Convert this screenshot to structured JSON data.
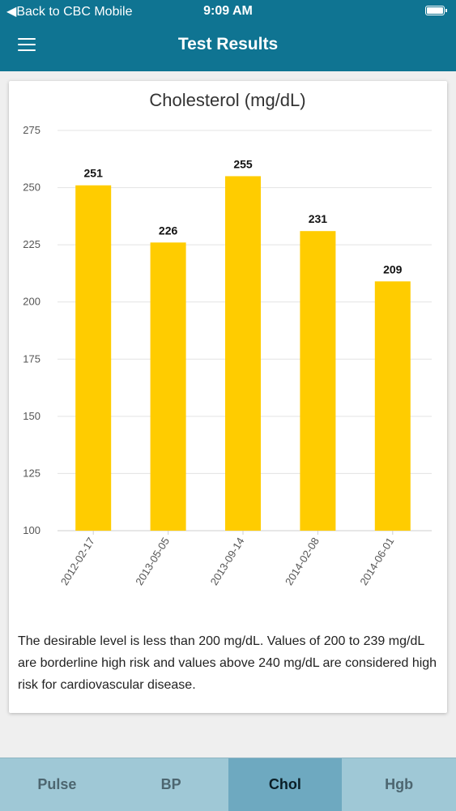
{
  "status_bar": {
    "back_label": "Back to CBC Mobile",
    "time": "9:09 AM"
  },
  "header": {
    "title": "Test Results"
  },
  "chart_data": {
    "type": "bar",
    "title": "Cholesterol (mg/dL)",
    "categories": [
      "2012-02-17",
      "2013-05-05",
      "2013-09-14",
      "2014-02-08",
      "2014-06-01"
    ],
    "values": [
      251,
      226,
      255,
      231,
      209
    ],
    "yticks": [
      100,
      125,
      150,
      175,
      200,
      225,
      250,
      275
    ],
    "ylim": [
      100,
      275
    ],
    "bar_color": "#ffcc00",
    "grid": true
  },
  "description": "The desirable level is less than 200 mg/dL. Values of 200 to 239 mg/dL are borderline high risk and values above 240 mg/dL are considered high risk for cardiovascular disease.",
  "tabs": [
    {
      "label": "Pulse",
      "active": false
    },
    {
      "label": "BP",
      "active": false
    },
    {
      "label": "Chol",
      "active": true
    },
    {
      "label": "Hgb",
      "active": false
    }
  ]
}
